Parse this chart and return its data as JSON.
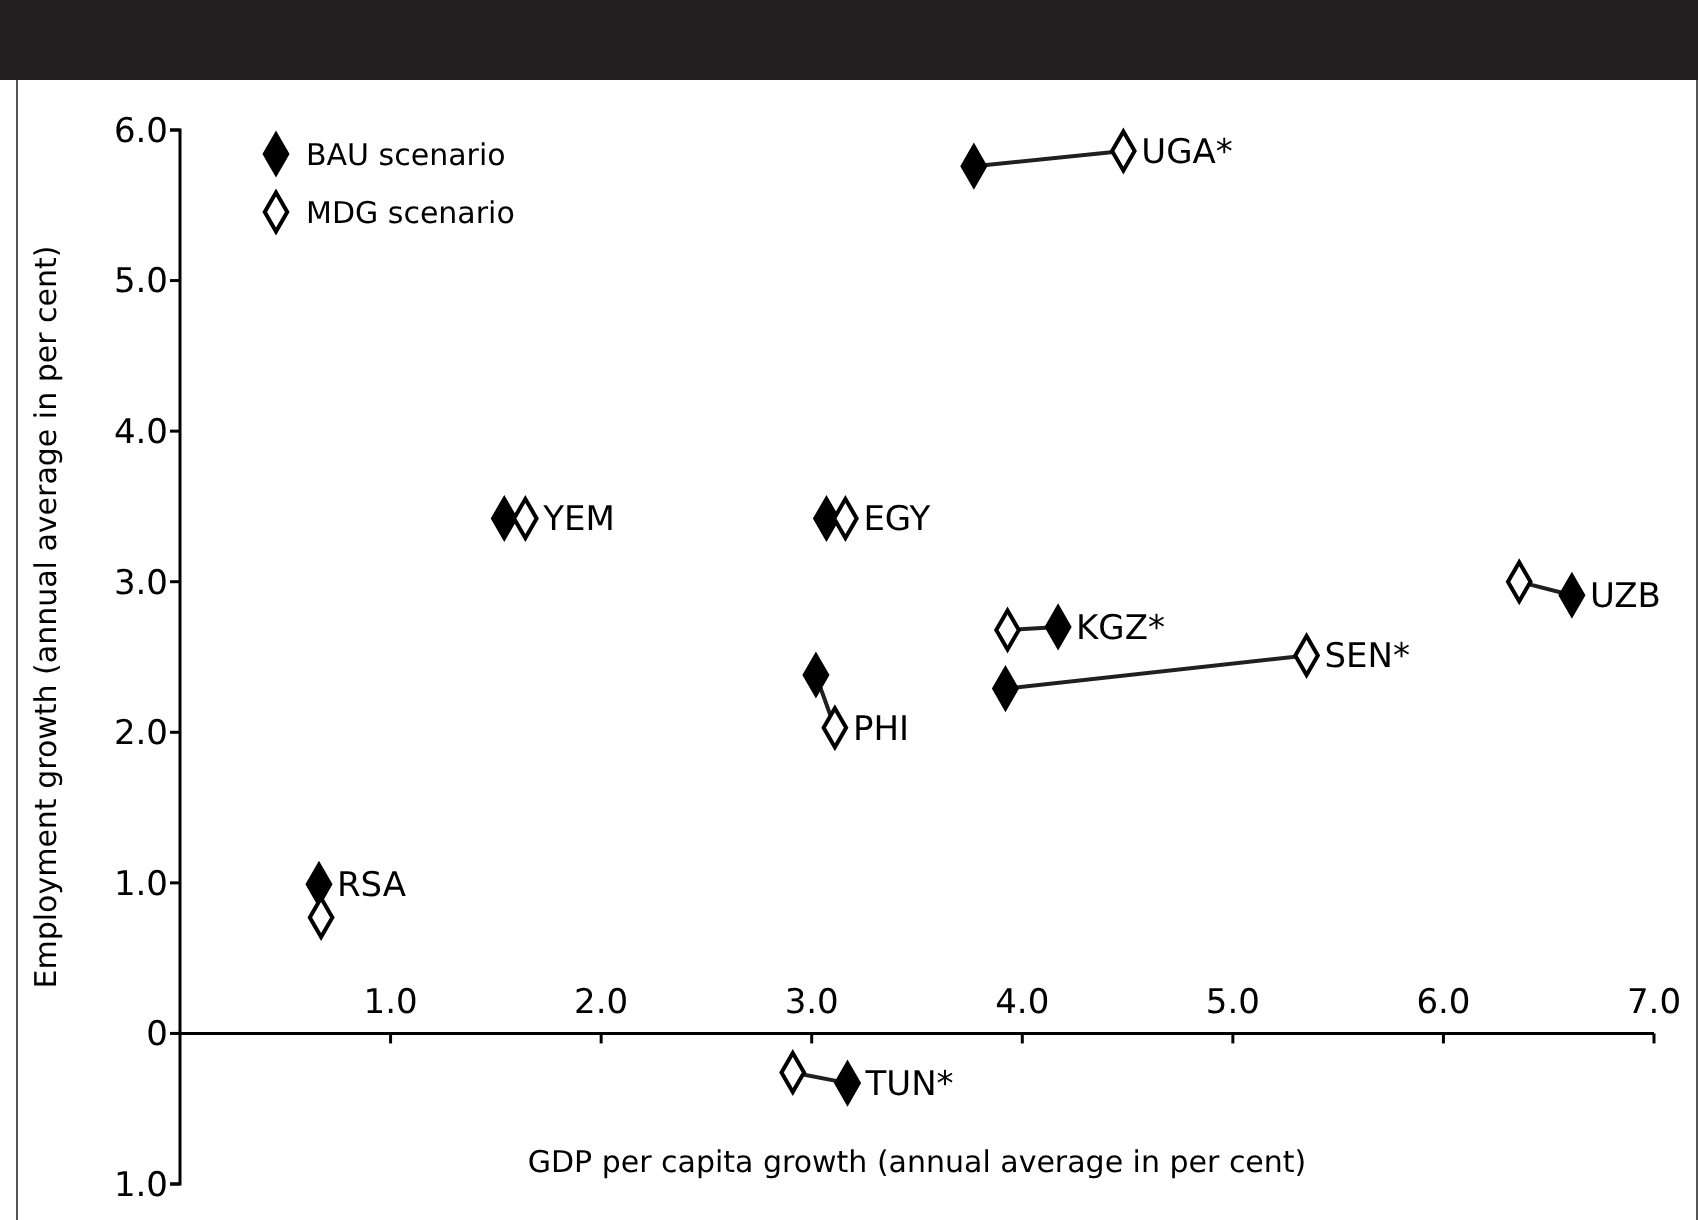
{
  "chart_data": {
    "type": "scatter",
    "xlabel": "GDP per capita growth (annual average in per cent)",
    "ylabel": "Employment growth (annual average in per cent)",
    "xlim": [
      0,
      7
    ],
    "ylim": [
      -1,
      6
    ],
    "xticks": [
      {
        "value": 1,
        "label": "1.0"
      },
      {
        "value": 2,
        "label": "2.0"
      },
      {
        "value": 3,
        "label": "3.0"
      },
      {
        "value": 4,
        "label": "4.0"
      },
      {
        "value": 5,
        "label": "5.0"
      },
      {
        "value": 6,
        "label": "6.0"
      },
      {
        "value": 7,
        "label": "7.0"
      }
    ],
    "yticks": [
      {
        "value": -1,
        "label": "1.0"
      },
      0,
      {
        "value": 1,
        "label": "1.0"
      },
      {
        "value": 2,
        "label": "2.0"
      },
      {
        "value": 3,
        "label": "3.0"
      },
      {
        "value": 4,
        "label": "4.0"
      },
      {
        "value": 5,
        "label": "5.0"
      },
      {
        "value": 6,
        "label": "6.0"
      }
    ],
    "marker": "diamond",
    "legend": "top left",
    "grid": false,
    "series": [
      {
        "name": "BAU scenario",
        "color": "#000000",
        "x": [
          0.66,
          1.54,
          3.07,
          3.77,
          3.02,
          4.17,
          3.92,
          6.61,
          3.17
        ],
        "values": [
          0.99,
          3.42,
          3.42,
          5.76,
          2.38,
          2.7,
          2.29,
          2.91,
          -0.33
        ]
      },
      {
        "name": "MDG scenario",
        "color": "#ffffff",
        "x": [
          0.67,
          1.64,
          3.16,
          4.48,
          3.11,
          3.93,
          5.35,
          6.36,
          2.91
        ],
        "values": [
          0.77,
          3.42,
          3.42,
          5.86,
          2.03,
          2.68,
          2.51,
          3.0,
          -0.26
        ]
      }
    ],
    "annotations": [
      {
        "text": "RSA",
        "x": 0.66,
        "y": 0.99
      },
      {
        "text": "YEM",
        "x": 1.64,
        "y": 3.42
      },
      {
        "text": "EGY",
        "x": 3.16,
        "y": 3.42
      },
      {
        "text": "UGA*",
        "x": 4.48,
        "y": 5.86
      },
      {
        "text": "PHI",
        "x": 3.11,
        "y": 2.03
      },
      {
        "text": "KGZ*",
        "x": 4.17,
        "y": 2.7
      },
      {
        "text": "SEN*",
        "x": 5.35,
        "y": 2.51
      },
      {
        "text": "UZB",
        "x": 6.61,
        "y": 2.91
      },
      {
        "text": "TUN*",
        "x": 3.17,
        "y": -0.33
      }
    ]
  }
}
